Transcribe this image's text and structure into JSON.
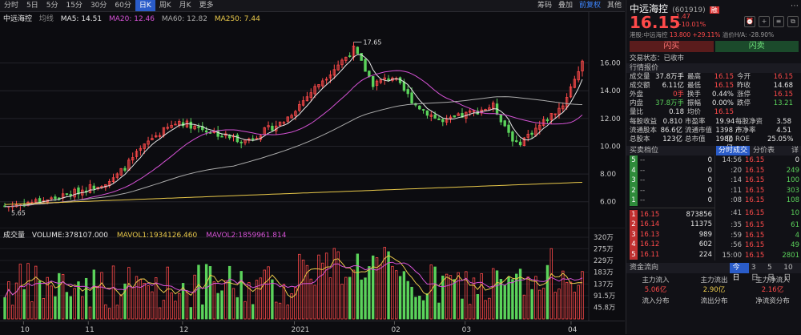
{
  "toolbar": {
    "tabs": [
      "分时",
      "5日",
      "日K",
      "周K",
      "月K",
      "更多"
    ],
    "minute_tabs": [
      "5分",
      "15分",
      "30分",
      "60分"
    ],
    "active_tab": "日K",
    "right": [
      "筹码",
      "叠加",
      "前复权",
      "其他"
    ]
  },
  "legend": {
    "name": "中远海控",
    "ma_label": "均线",
    "ma5": "MA5: 14.51",
    "ma20": "MA20: 12.46",
    "ma60": "MA60: 12.82",
    "ma250": "MA250: 7.44"
  },
  "vol_legend": {
    "label": "成交量",
    "volume": "VOLUME:378107.000",
    "mavol1": "MAVOL1:1934126.460",
    "mavol2": "MAVOL2:1859961.814"
  },
  "price_axis": [
    "16.00",
    "14.00",
    "12.00",
    "10.00",
    "8.00",
    "6.00"
  ],
  "vol_axis": [
    "320万",
    "275万",
    "229万",
    "183万",
    "137万",
    "91.5万",
    "45.8万"
  ],
  "x_axis": [
    "10",
    "11",
    "12",
    "2021",
    "02",
    "03",
    "04"
  ],
  "annotations": {
    "high": "17.65",
    "low": "5.65"
  },
  "colors": {
    "up": "#ff4a4a",
    "down": "#5bd35b",
    "ma5": "#e6e6e6",
    "ma20": "#d552d5",
    "ma60": "#aaaaaa",
    "ma250": "#e8c84a"
  },
  "panel": {
    "title": "中远海控",
    "code": "(601919)",
    "badge": "融",
    "price": "16.15",
    "change": "1.47",
    "pct": "+10.01%",
    "hk_line": "港股:中远海控",
    "hk_val": "13.800 +29.11%",
    "ah_line": "溢价H/A: -28.90%",
    "buy": "闪买",
    "sell": "闪卖",
    "status": "交易状态：已收市",
    "quote_header": "行情报价",
    "quote": [
      [
        "成交量",
        "37.8万手",
        "最高",
        "16.15",
        "今开",
        "16.15"
      ],
      [
        "成交额",
        "6.11亿",
        "最低",
        "16.15",
        "昨收",
        "14.68"
      ],
      [
        "外盘",
        "0手",
        "换手",
        "0.44%",
        "涨停",
        "16.15"
      ],
      [
        "内盘",
        "37.8万手",
        "振幅",
        "0.00%",
        "跌停",
        "13.21"
      ],
      [
        "量比",
        "0.18",
        "均价",
        "16.15",
        "",
        ""
      ]
    ],
    "fundamentals": [
      [
        "每股收益",
        "0.810",
        "市盈率",
        "19.94",
        "每股净资产",
        "3.58"
      ],
      [
        "流通股本",
        "86.6亿",
        "流通市值",
        "1398亿",
        "市净率",
        "4.51"
      ],
      [
        "总股本",
        "123亿",
        "总市值",
        "1980亿",
        "ROE",
        "25.05%"
      ]
    ],
    "book_header": "买卖档位",
    "trade_tabs": [
      "分时成交",
      "分价表",
      "详"
    ],
    "asks": [
      [
        "5",
        "--",
        "0"
      ],
      [
        "4",
        "--",
        "0"
      ],
      [
        "3",
        "--",
        "0"
      ],
      [
        "2",
        "--",
        "0"
      ],
      [
        "1",
        "--",
        "0"
      ]
    ],
    "bids": [
      [
        "1",
        "16.15",
        "873856"
      ],
      [
        "2",
        "16.14",
        "11375"
      ],
      [
        "3",
        "16.13",
        "989"
      ],
      [
        "4",
        "16.12",
        "602"
      ],
      [
        "5",
        "16.11",
        "224"
      ]
    ],
    "trades": [
      [
        "14:56",
        "16.15",
        "0"
      ],
      [
        ":20",
        "16.15",
        "249"
      ],
      [
        ":14",
        "16.15",
        "100"
      ],
      [
        ":11",
        "16.15",
        "303"
      ],
      [
        ":08",
        "16.15",
        "108"
      ],
      [
        ":41",
        "16.15",
        "10"
      ],
      [
        ":35",
        "16.15",
        "61"
      ],
      [
        ":59",
        "16.15",
        "4"
      ],
      [
        ":56",
        "16.15",
        "49"
      ],
      [
        "15:00",
        "16.15",
        "2801"
      ]
    ],
    "flow_header": "资金流向",
    "flow_tabs": [
      "今日",
      "3日",
      "5日",
      "10日"
    ],
    "flow": [
      [
        "主力流入",
        "5.06亿"
      ],
      [
        "主力流出",
        "2.90亿"
      ],
      [
        "主力净流入",
        "2.16亿"
      ]
    ],
    "dist": [
      "流入分布",
      "流出分布",
      "净流资分布"
    ]
  }
}
